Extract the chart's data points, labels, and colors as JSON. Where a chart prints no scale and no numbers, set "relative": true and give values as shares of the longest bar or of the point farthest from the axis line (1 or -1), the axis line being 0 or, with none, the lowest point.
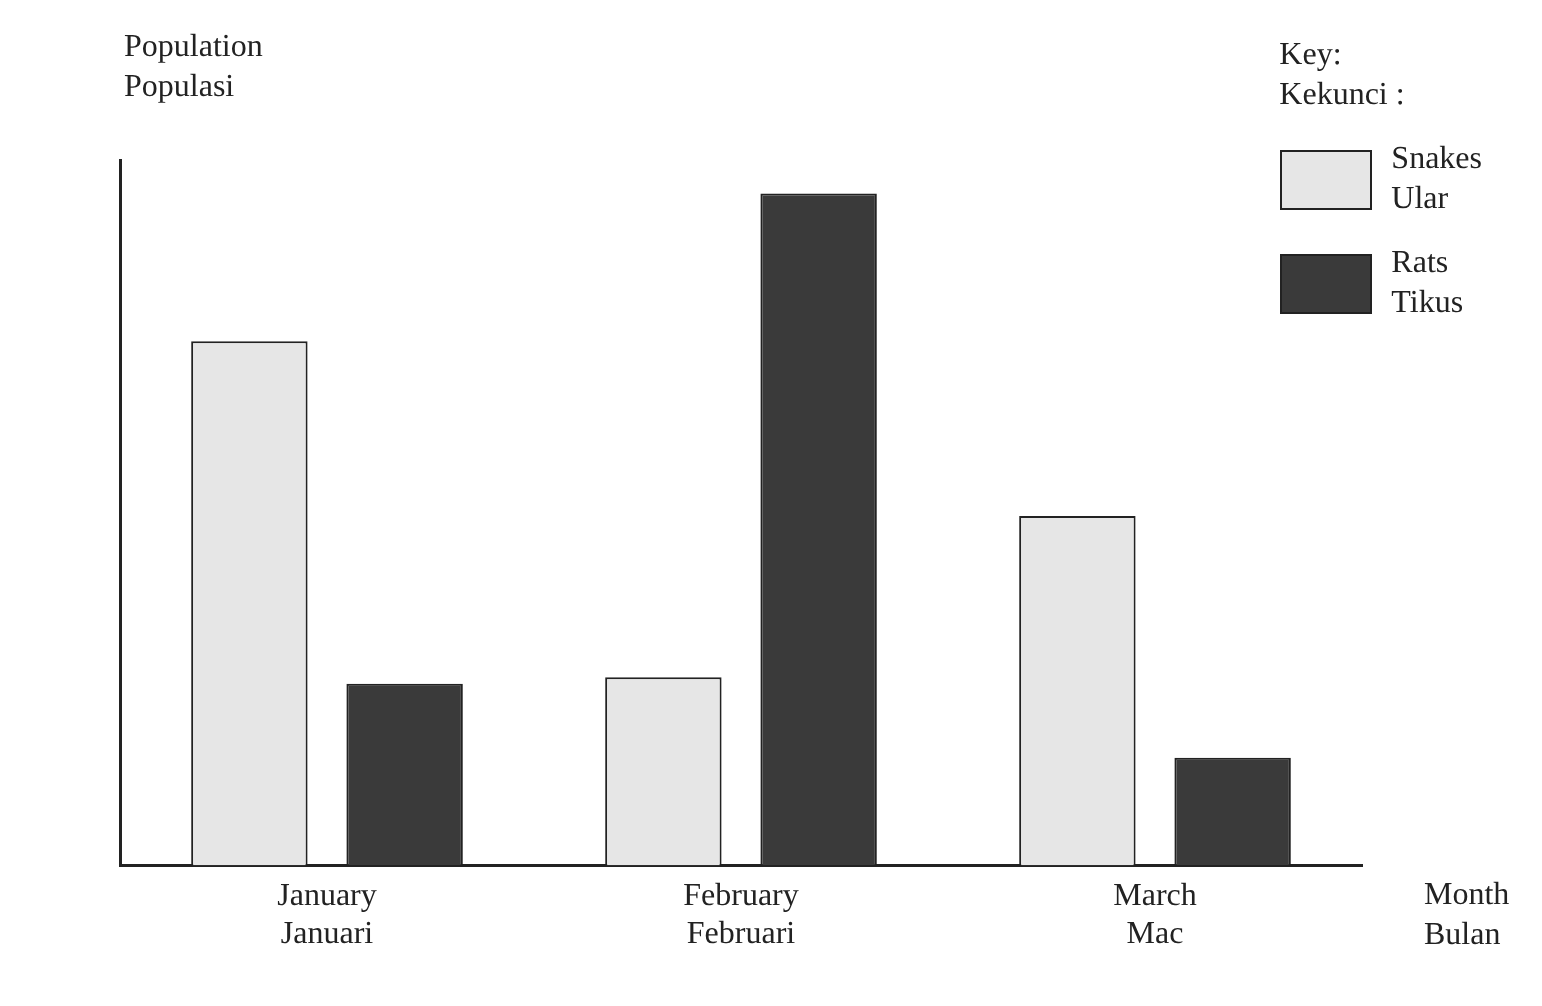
{
  "chart_data": {
    "type": "bar",
    "relative": true,
    "ylabel": "Population\nPopulasi",
    "xlabel": "Month\nBulan",
    "legend_title": "Key:\nKekunci :",
    "legend": "top right",
    "grid": false,
    "categories": [
      "January\nJanuari",
      "February\nFebruari",
      "March\nMac"
    ],
    "series": [
      {
        "name": "Snakes\nUlar",
        "color": "#e6e6e6",
        "values": [
          0.78,
          0.28,
          0.52
        ]
      },
      {
        "name": "Rats\nTikus",
        "color": "#3a3a3a",
        "values": [
          0.27,
          1,
          0.16
        ]
      }
    ]
  }
}
